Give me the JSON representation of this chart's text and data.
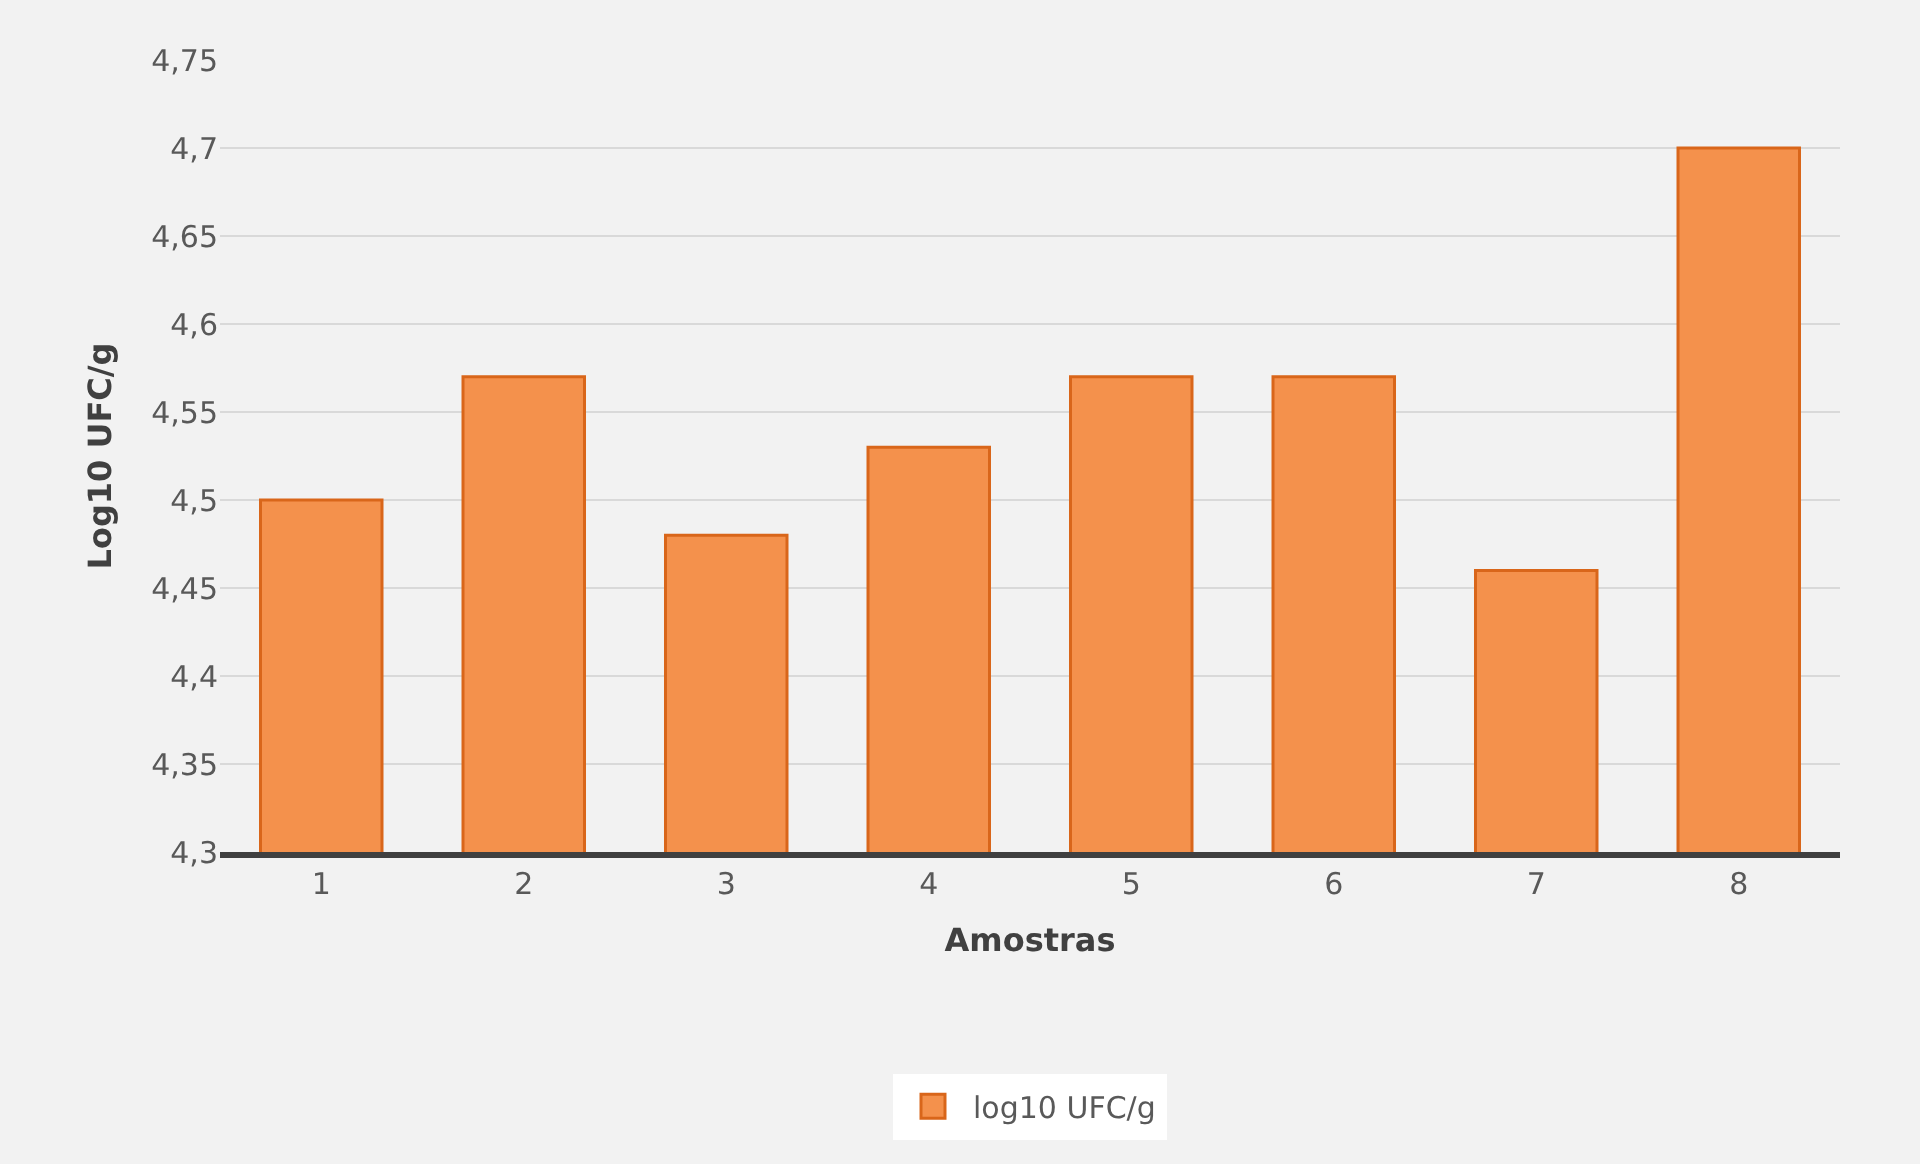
{
  "chart_data": {
    "type": "bar",
    "xlabel": "Amostras",
    "ylabel": "Log10 UFC/g",
    "categories": [
      "1",
      "2",
      "3",
      "4",
      "5",
      "6",
      "7",
      "8"
    ],
    "series": [
      {
        "name": "log10 UFC/g",
        "color": "#f4914c",
        "values": [
          4.5,
          4.57,
          4.48,
          4.53,
          4.57,
          4.57,
          4.46,
          4.7
        ]
      }
    ],
    "ylim": [
      4.3,
      4.75
    ],
    "yticks": [
      {
        "value": 4.3,
        "label": "4,3"
      },
      {
        "value": 4.35,
        "label": "4,35"
      },
      {
        "value": 4.4,
        "label": "4,4"
      },
      {
        "value": 4.45,
        "label": "4,45"
      },
      {
        "value": 4.5,
        "label": "4,5"
      },
      {
        "value": 4.55,
        "label": "4,55"
      },
      {
        "value": 4.6,
        "label": "4,6"
      },
      {
        "value": 4.65,
        "label": "4,65"
      },
      {
        "value": 4.7,
        "label": "4,7"
      },
      {
        "value": 4.75,
        "label": "4,75"
      }
    ],
    "grid": "y",
    "legend": "bottom"
  }
}
